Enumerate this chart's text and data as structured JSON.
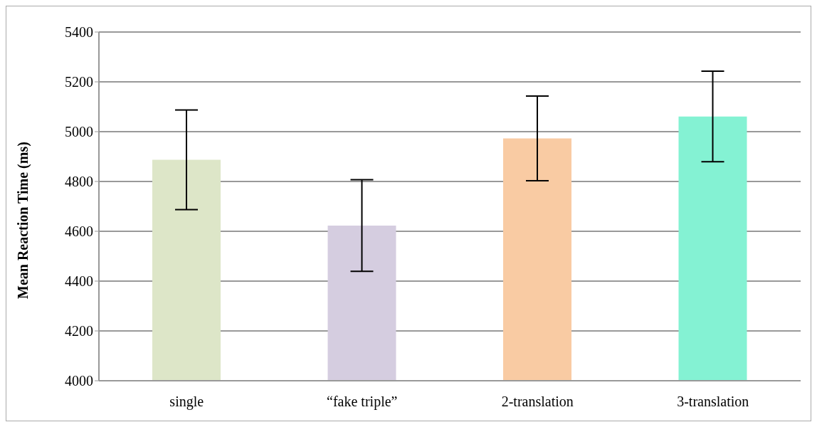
{
  "chart_data": {
    "type": "bar",
    "ylabel": "Mean Reaction Time (ms)",
    "categories": [
      "single",
      "“fake triple”",
      "2-translation",
      "3-translation"
    ],
    "values": [
      4887,
      4623,
      4973,
      5061
    ],
    "errors": [
      200,
      184,
      170,
      182
    ],
    "colors": [
      "#dde6c8",
      "#d5cde0",
      "#f9cba3",
      "#84f2d3"
    ],
    "ylim": [
      4000,
      5400
    ],
    "yticks": [
      4000,
      4200,
      4400,
      4600,
      4800,
      5000,
      5200,
      5400
    ],
    "grid": "y"
  }
}
